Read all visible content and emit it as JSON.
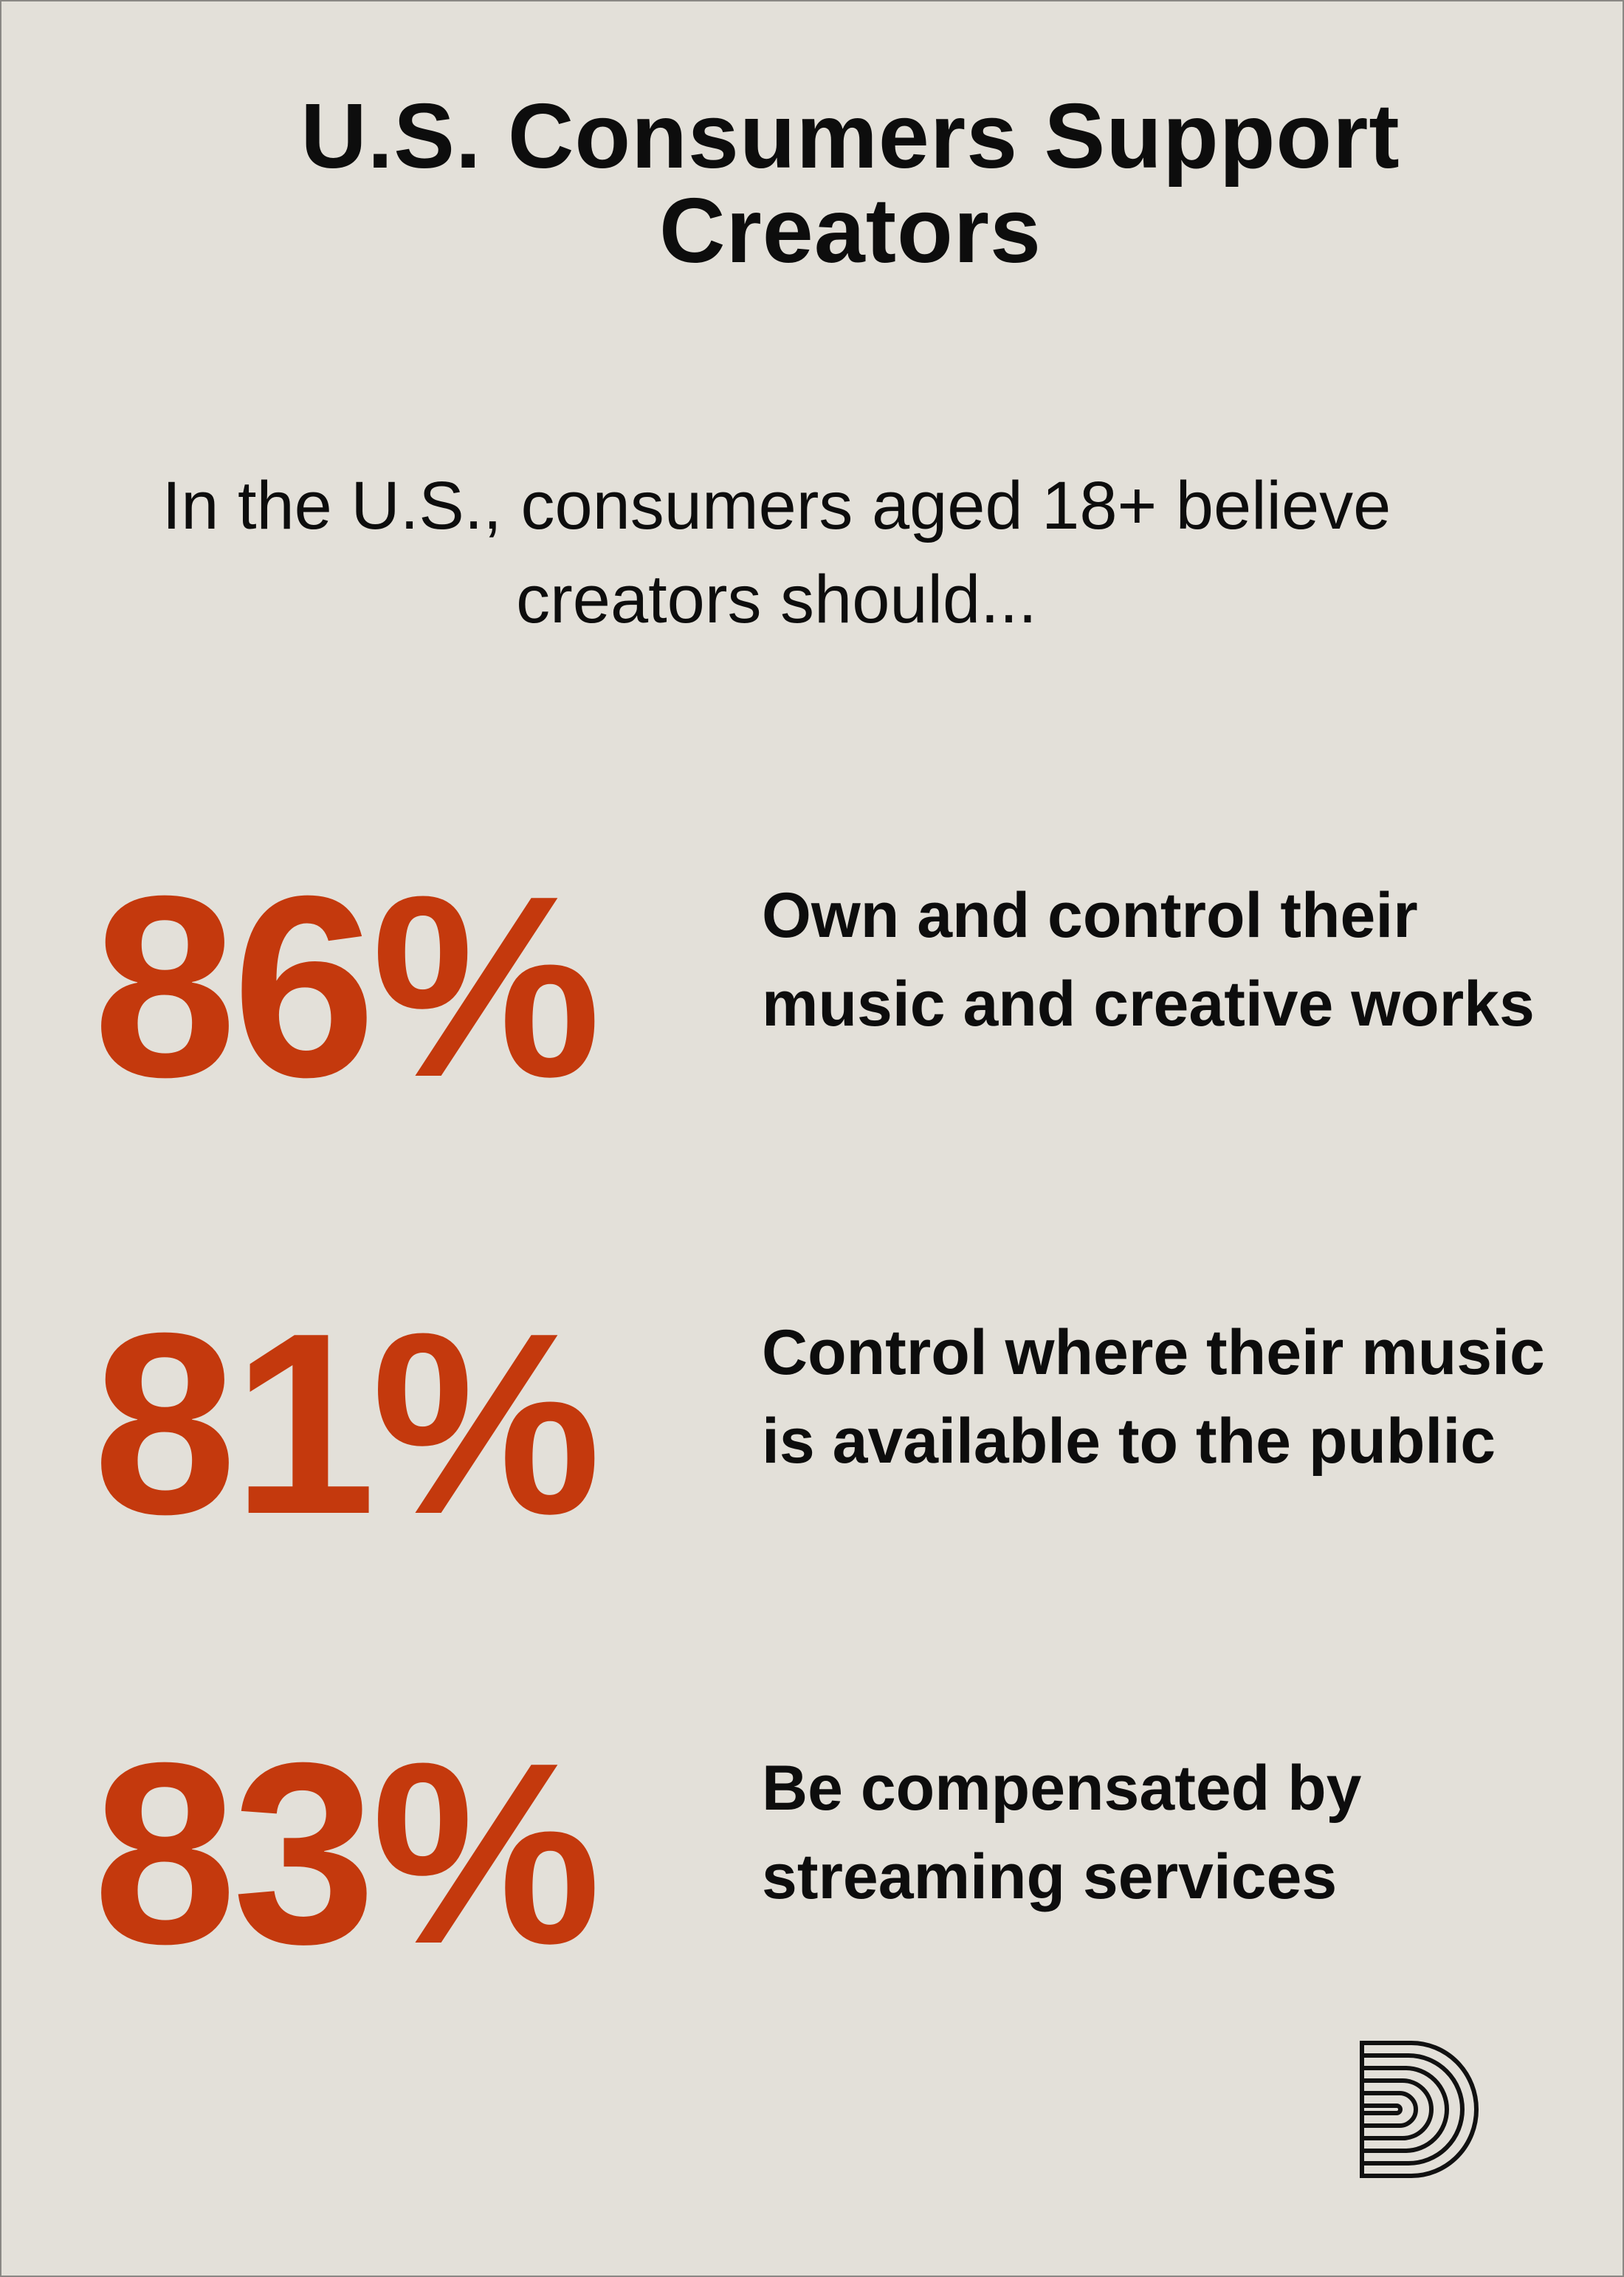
{
  "title": "U.S. Consumers Support Creators",
  "subtitle": "In the U.S., consumers aged 18+ believe creators should...",
  "colors": {
    "background": "#e3e0d9",
    "accent": "#c4390d",
    "text": "#0d0d0d"
  },
  "stats": [
    {
      "percent": "86%",
      "value": 86,
      "description": "Own and control their music and creative works"
    },
    {
      "percent": "81%",
      "value": 81,
      "description": "Control where their music is available to the public"
    },
    {
      "percent": "83%",
      "value": 83,
      "description": "Be compensated by streaming services"
    }
  ],
  "logo": {
    "icon": "concentric-d-logo-icon"
  }
}
